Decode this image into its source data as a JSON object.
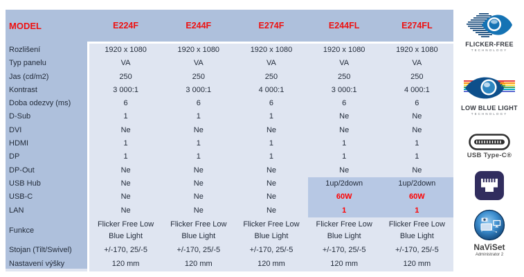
{
  "table": {
    "header": {
      "model_label": "MODEL",
      "columns": [
        "E224F",
        "E244F",
        "E274F",
        "E244FL",
        "E274FL"
      ]
    },
    "rows": [
      {
        "label": "Rozlišení",
        "values": [
          "1920 x 1080",
          "1920 x 1080",
          "1920 x 1080",
          "1920 x 1080",
          "1920 x 1080"
        ]
      },
      {
        "label": "Typ panelu",
        "values": [
          "VA",
          "VA",
          "VA",
          "VA",
          "VA"
        ]
      },
      {
        "label": "Jas (cd/m2)",
        "values": [
          "250",
          "250",
          "250",
          "250",
          "250"
        ]
      },
      {
        "label": "Kontrast",
        "values": [
          "3 000:1",
          "3 000:1",
          "4 000:1",
          "3 000:1",
          "4 000:1"
        ]
      },
      {
        "label": "Doba odezvy (ms)",
        "values": [
          "6",
          "6",
          "6",
          "6",
          "6"
        ]
      },
      {
        "label": "D-Sub",
        "values": [
          "1",
          "1",
          "1",
          "Ne",
          "Ne"
        ]
      },
      {
        "label": "DVI",
        "values": [
          "Ne",
          "Ne",
          "Ne",
          "Ne",
          "Ne"
        ]
      },
      {
        "label": "HDMI",
        "values": [
          "1",
          "1",
          "1",
          "1",
          "1"
        ]
      },
      {
        "label": "DP",
        "values": [
          "1",
          "1",
          "1",
          "1",
          "1"
        ]
      },
      {
        "label": "DP-Out",
        "values": [
          "Ne",
          "Ne",
          "Ne",
          "Ne",
          "Ne"
        ]
      },
      {
        "label": "USB Hub",
        "values": [
          "Ne",
          "Ne",
          "Ne",
          "1up/2down",
          "1up/2down"
        ]
      },
      {
        "label": "USB-C",
        "values": [
          "Ne",
          "Ne",
          "Ne",
          "60W",
          "60W"
        ],
        "red": [
          3,
          4
        ]
      },
      {
        "label": "LAN",
        "values": [
          "Ne",
          "Ne",
          "Ne",
          "1",
          "1"
        ],
        "red": [
          3,
          4
        ]
      },
      {
        "label": "Funkce",
        "tall": true,
        "values": [
          "Flicker Free Low Blue Light",
          "Flicker Free Low Blue Light",
          "Flicker Free Low Blue Light",
          "Flicker Free Low Blue Light",
          "Flicker Free Low Blue Light"
        ]
      },
      {
        "label": "Stojan (Tilt/Swivel)",
        "values": [
          "+/-170, 25/-5",
          "+/-170, 25/-5",
          "+/-170, 25/-5",
          "+/-170, 25/-5",
          "+/-170, 25/-5"
        ]
      },
      {
        "label": "Nastavení výšky",
        "values": [
          "120 mm",
          "120 mm",
          "120 mm",
          "120 mm",
          "120 mm"
        ]
      }
    ]
  },
  "badges": {
    "flicker_free": {
      "icon": "flicker-free-eye-icon",
      "title": "FLICKER-FREE",
      "subtitle": "TECHNOLOGY"
    },
    "low_blue_light": {
      "icon": "low-blue-light-eye-icon",
      "title": "LOW BLUE LIGHT",
      "subtitle": "TECHNOLOGY"
    },
    "usb_type_c": {
      "icon": "usb-type-c-connector-icon",
      "title": "USB Type-C®"
    },
    "lan": {
      "icon": "lan-ethernet-port-icon"
    },
    "naviset": {
      "icon": "naviset-globe-icon",
      "title": "NaViSet",
      "subtitle": "Administrator 2"
    }
  },
  "colors": {
    "header_bg": "#aec0dc",
    "label_col_bg": "#aec0dc",
    "data_bg": "#dfe5f1",
    "highlight_bg": "#b7c8e4",
    "accent_red": "#ff0000",
    "text": "#222b3a"
  }
}
